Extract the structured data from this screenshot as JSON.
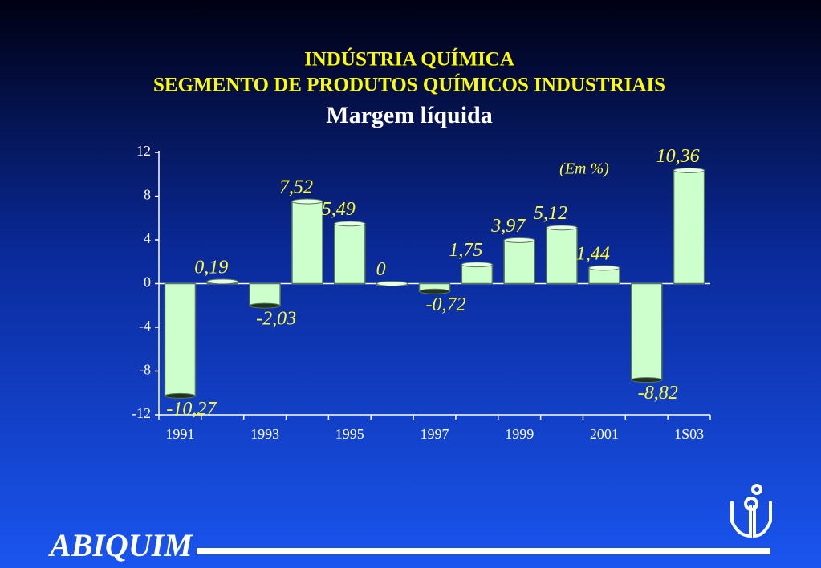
{
  "chart_data": {
    "type": "bar",
    "title": "INDÚSTRIA QUÍMICA",
    "subtitle": "SEGMENTO DE PRODUTOS QUÍMICOS INDUSTRIAIS",
    "chart_title": "Margem líquida",
    "annotation": "(Em %)",
    "categories": [
      "1991",
      null,
      "1993",
      null,
      "1995",
      null,
      "1997",
      null,
      "1999",
      null,
      "2001",
      null,
      "1S03"
    ],
    "values": [
      -10.27,
      0.19,
      -2.03,
      7.52,
      5.49,
      0,
      -0.72,
      1.75,
      3.97,
      5.12,
      1.44,
      -8.82,
      10.36
    ],
    "value_labels": [
      "-10,27",
      "0,19",
      "-2,03",
      "7,52",
      "5,49",
      "0",
      "-0,72",
      "1,75",
      "3,97",
      "5,12",
      "1,44",
      "-8,82",
      "10,36"
    ],
    "color": "#ccffcc",
    "ylim": [
      -12,
      12
    ],
    "yticks": [
      12,
      8,
      4,
      0,
      -4,
      -8,
      -12
    ],
    "logo": "ABIQUIM"
  }
}
